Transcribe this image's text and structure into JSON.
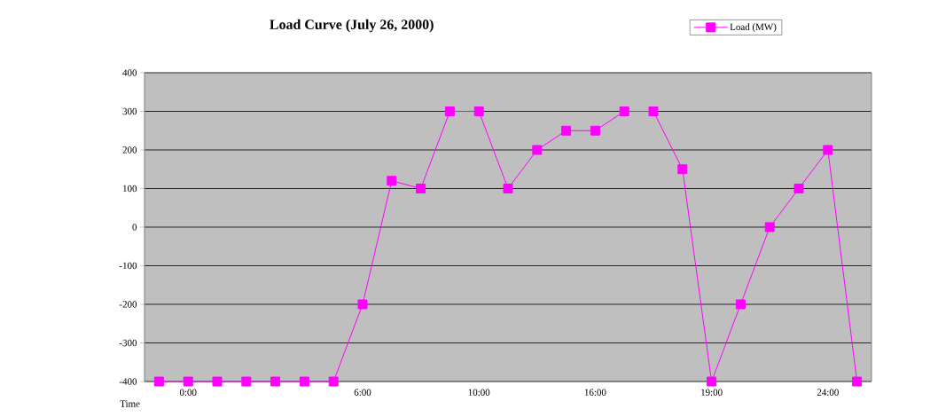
{
  "chart_data": {
    "type": "line",
    "title": "Load Curve (July 26, 2000)",
    "xlabel": "Time",
    "categories": [
      null,
      "0:00",
      null,
      null,
      null,
      null,
      null,
      "6:00",
      null,
      null,
      null,
      "10:00",
      null,
      null,
      null,
      "16:00",
      null,
      null,
      null,
      "19:00",
      null,
      null,
      null,
      "24:00",
      null
    ],
    "series": [
      {
        "name": "Load (MW)",
        "color": "#ff00ff",
        "values": [
          -400,
          -400,
          -400,
          -400,
          -400,
          -400,
          -400,
          -200,
          120,
          100,
          300,
          300,
          100,
          200,
          250,
          250,
          300,
          300,
          150,
          -400,
          -200,
          0,
          100,
          200,
          -400
        ]
      }
    ],
    "ylim": [
      -400,
      400
    ],
    "yticks": [
      -400,
      -300,
      -200,
      -100,
      0,
      100,
      200,
      300,
      400
    ],
    "grid": "y",
    "legend": "top right",
    "marker": "square"
  }
}
